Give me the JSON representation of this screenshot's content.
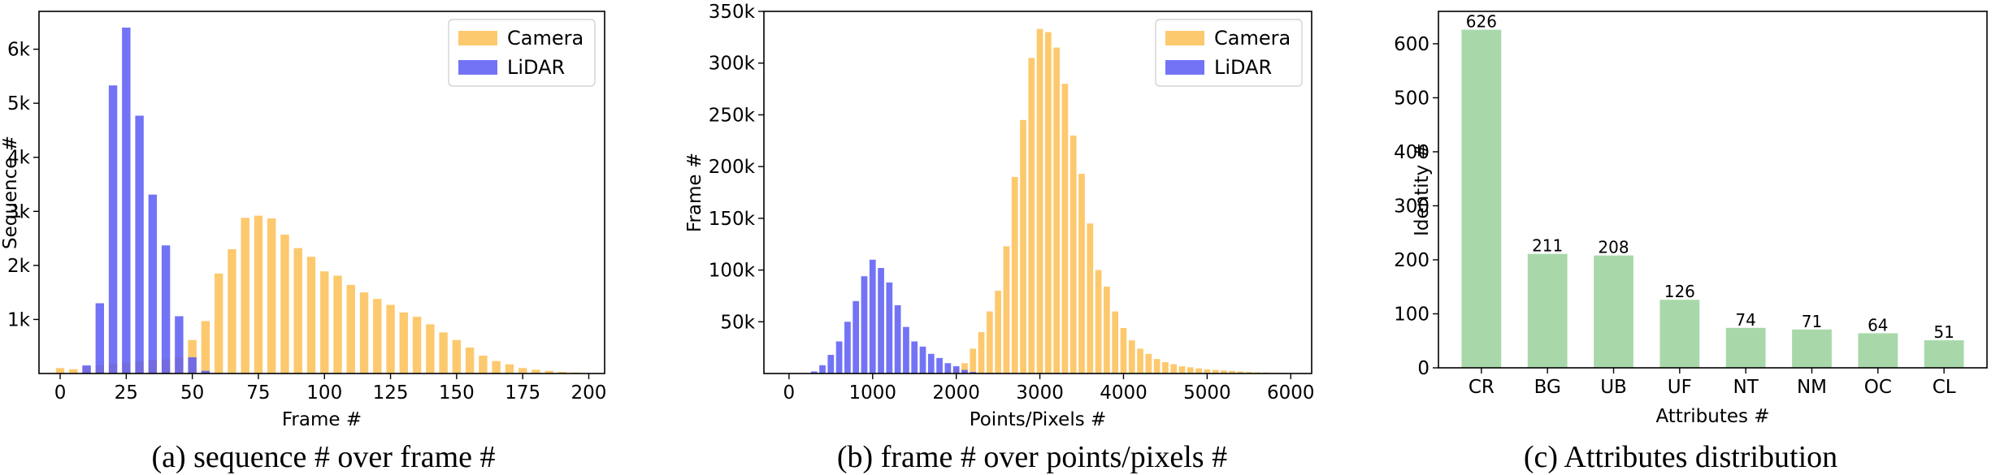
{
  "chart_data": [
    {
      "type": "bar",
      "caption": "(a) sequence # over frame #",
      "xlabel": "Frame #",
      "ylabel": "Sequence #",
      "xlim": [
        -8,
        206
      ],
      "ylim": [
        0,
        6700
      ],
      "xticks": [
        0,
        25,
        50,
        75,
        100,
        125,
        150,
        175,
        200
      ],
      "xtick_labels": [
        "0",
        "25",
        "50",
        "75",
        "100",
        "125",
        "150",
        "175",
        "200"
      ],
      "yticks": [
        1000,
        2000,
        3000,
        4000,
        5000,
        6000
      ],
      "ytick_labels": [
        "1k",
        "2k",
        "3k",
        "4k",
        "5k",
        "6k"
      ],
      "bar_width": 3.2,
      "legend": {
        "position": "top-right",
        "entries": [
          "Camera",
          "LiDAR"
        ]
      },
      "series": [
        {
          "name": "Camera",
          "color": "#fdbf55",
          "x": [
            0,
            5,
            10,
            15,
            20,
            25,
            30,
            35,
            40,
            45,
            50,
            55,
            60,
            65,
            70,
            75,
            80,
            85,
            90,
            95,
            100,
            105,
            110,
            115,
            120,
            125,
            130,
            135,
            140,
            145,
            150,
            155,
            160,
            165,
            170,
            175,
            180,
            185,
            190,
            195
          ],
          "values": [
            100,
            80,
            120,
            150,
            180,
            200,
            220,
            250,
            260,
            300,
            620,
            970,
            1850,
            2300,
            2880,
            2920,
            2870,
            2570,
            2320,
            2160,
            1890,
            1810,
            1640,
            1500,
            1380,
            1270,
            1130,
            1050,
            910,
            760,
            620,
            480,
            330,
            230,
            170,
            100,
            70,
            50,
            30,
            20
          ]
        },
        {
          "name": "LiDAR",
          "color": "#5a5af5",
          "x": [
            10,
            15,
            20,
            25,
            30,
            35,
            40,
            45,
            50,
            55
          ],
          "values": [
            150,
            1300,
            5330,
            6400,
            4770,
            3310,
            2370,
            1060,
            300,
            50
          ]
        }
      ]
    },
    {
      "type": "bar",
      "caption": "(b) frame # over points/pixels #",
      "xlabel": "Points/Pixels #",
      "ylabel": "Frame #",
      "xlim": [
        -300,
        6250
      ],
      "ylim": [
        0,
        350000
      ],
      "xticks": [
        0,
        1000,
        2000,
        3000,
        4000,
        5000,
        6000
      ],
      "xtick_labels": [
        "0",
        "1000",
        "2000",
        "3000",
        "4000",
        "5000",
        "6000"
      ],
      "yticks": [
        50000,
        100000,
        150000,
        200000,
        250000,
        300000,
        350000
      ],
      "ytick_labels": [
        "50k",
        "100k",
        "150k",
        "200k",
        "250k",
        "300k",
        "350k"
      ],
      "bar_width": 75,
      "legend": {
        "position": "top-right",
        "entries": [
          "Camera",
          "LiDAR"
        ]
      },
      "series": [
        {
          "name": "Camera",
          "color": "#fdbf55",
          "x": [
            1900,
            2000,
            2100,
            2200,
            2300,
            2400,
            2500,
            2600,
            2700,
            2800,
            2900,
            3000,
            3100,
            3200,
            3300,
            3400,
            3500,
            3600,
            3700,
            3800,
            3900,
            4000,
            4100,
            4200,
            4300,
            4400,
            4500,
            4600,
            4700,
            4800,
            4900,
            5000,
            5100,
            5200,
            5300,
            5400,
            5500,
            5600,
            5700,
            5800,
            5900,
            6000
          ],
          "values": [
            2000,
            5000,
            10000,
            24000,
            40000,
            60000,
            80000,
            123000,
            190000,
            245000,
            305000,
            333000,
            330000,
            315000,
            280000,
            230000,
            193000,
            145000,
            100000,
            84000,
            60000,
            44000,
            32000,
            24000,
            19000,
            14000,
            11000,
            9000,
            7000,
            6000,
            5000,
            4000,
            3500,
            3000,
            2500,
            2000,
            1500,
            1200,
            1000,
            800,
            600,
            400
          ]
        },
        {
          "name": "LiDAR",
          "color": "#5a5af5",
          "x": [
            300,
            400,
            500,
            600,
            700,
            800,
            900,
            1000,
            1100,
            1200,
            1300,
            1400,
            1500,
            1600,
            1700,
            1800,
            1900,
            2000,
            2100,
            2200
          ],
          "values": [
            2000,
            8000,
            18000,
            31000,
            50000,
            70000,
            94000,
            110000,
            102000,
            88000,
            66000,
            45000,
            31000,
            26000,
            19000,
            15000,
            10000,
            7000,
            3500,
            1500
          ]
        }
      ]
    },
    {
      "type": "bar",
      "caption": "(c) Attributes distribution",
      "xlabel": "Attributes #",
      "ylabel": "Identity #",
      "ylim": [
        0,
        660
      ],
      "yticks": [
        0,
        100,
        200,
        300,
        400,
        500,
        600
      ],
      "ytick_labels": [
        "0",
        "100",
        "200",
        "300",
        "400",
        "500",
        "600"
      ],
      "bar_color": "#a8d8a9",
      "categories": [
        "CR",
        "BG",
        "UB",
        "UF",
        "NT",
        "NM",
        "OC",
        "CL"
      ],
      "values": [
        626,
        211,
        208,
        126,
        74,
        71,
        64,
        51
      ],
      "data_labels": [
        "626",
        "211",
        "208",
        "126",
        "74",
        "71",
        "64",
        "51"
      ]
    }
  ]
}
